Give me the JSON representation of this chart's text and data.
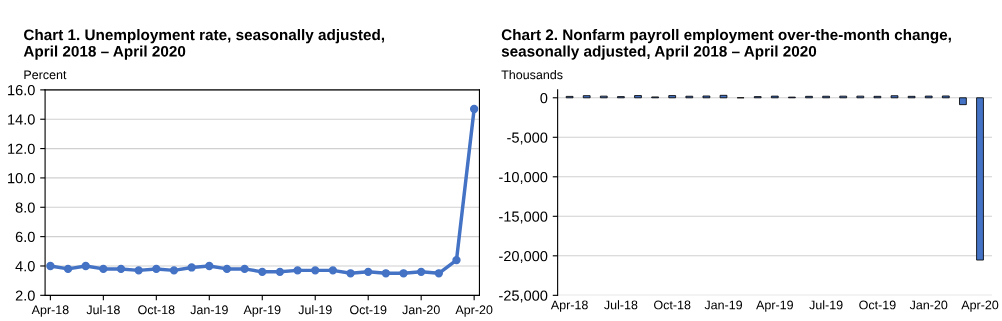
{
  "chart_data": [
    {
      "type": "line",
      "title": "Chart 1. Unemployment rate, seasonally adjusted,\nApril 2018 – April 2020",
      "ylabel": "Percent",
      "categories": [
        "Apr-18",
        null,
        null,
        "Jul-18",
        null,
        null,
        "Oct-18",
        null,
        null,
        "Jan-19",
        null,
        null,
        "Apr-19",
        null,
        null,
        "Jul-19",
        null,
        null,
        "Oct-19",
        null,
        null,
        "Jan-20",
        null,
        null,
        "Apr-20"
      ],
      "series": [
        {
          "color": "#4472c4",
          "values": [
            4.0,
            3.8,
            4.0,
            3.8,
            3.8,
            3.7,
            3.8,
            3.7,
            3.9,
            4.0,
            3.8,
            3.8,
            3.6,
            3.6,
            3.7,
            3.7,
            3.7,
            3.5,
            3.6,
            3.5,
            3.5,
            3.6,
            3.5,
            4.4,
            14.7
          ]
        }
      ],
      "ylim": [
        2.0,
        16.0
      ],
      "yticks": [
        {
          "value": 2,
          "label": "2.0"
        },
        {
          "value": 4,
          "label": "4.0"
        },
        {
          "value": 6,
          "label": "6.0"
        },
        {
          "value": 8,
          "label": "8.0"
        },
        {
          "value": 10,
          "label": "10.0"
        },
        {
          "value": 12,
          "label": "12.0"
        },
        {
          "value": 14,
          "label": "14.0"
        },
        {
          "value": 16,
          "label": "16.0"
        }
      ],
      "grid": "y",
      "marker": "circle",
      "line_style": "solid",
      "legend": false
    },
    {
      "type": "bar",
      "title": "Chart 2. Nonfarm payroll employment over-the-month change,\nseasonally adjusted, April 2018 – April 2020",
      "ylabel": "Thousands",
      "categories": [
        "Apr-18",
        null,
        null,
        "Jul-18",
        null,
        null,
        "Oct-18",
        null,
        null,
        "Jan-19",
        null,
        null,
        "Apr-19",
        null,
        null,
        "Jul-19",
        null,
        null,
        "Oct-19",
        null,
        null,
        "Jan-20",
        null,
        null,
        "Apr-20"
      ],
      "series": [
        {
          "color": "#4472c4",
          "values": [
            175,
            270,
            208,
            147,
            282,
            108,
            277,
            196,
            227,
            312,
            1,
            147,
            210,
            85,
            182,
            194,
            207,
            208,
            185,
            261,
            184,
            214,
            230,
            -870,
            -20537
          ]
        }
      ],
      "ylim": [
        -25000,
        1000
      ],
      "yticks": [
        {
          "value": -25000,
          "label": "-25,000"
        },
        {
          "value": -20000,
          "label": "-20,000"
        },
        {
          "value": -15000,
          "label": "-15,000"
        },
        {
          "value": -10000,
          "label": "-10,000"
        },
        {
          "value": -5000,
          "label": "-5,000"
        },
        {
          "value": 0,
          "label": "0"
        }
      ],
      "grid": "y",
      "legend": false
    }
  ]
}
